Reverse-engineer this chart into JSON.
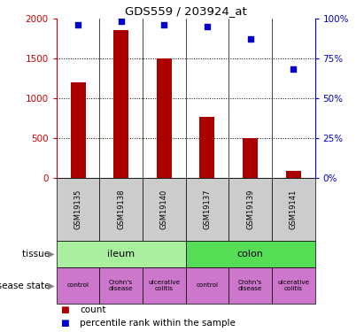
{
  "title": "GDS559 / 203924_at",
  "samples": [
    "GSM19135",
    "GSM19138",
    "GSM19140",
    "GSM19137",
    "GSM19139",
    "GSM19141"
  ],
  "bar_values": [
    1200,
    1850,
    1500,
    760,
    500,
    80
  ],
  "percentile_values": [
    96,
    98,
    96,
    95,
    87,
    68
  ],
  "bar_color": "#aa0000",
  "dot_color": "#0000cc",
  "ylim_left": [
    0,
    2000
  ],
  "ylim_right": [
    0,
    100
  ],
  "yticks_left": [
    0,
    500,
    1000,
    1500,
    2000
  ],
  "yticks_right": [
    0,
    25,
    50,
    75,
    100
  ],
  "tissue_data": [
    {
      "label": "ileum",
      "span": 3,
      "color": "#aaeea0"
    },
    {
      "label": "colon",
      "span": 3,
      "color": "#55dd55"
    }
  ],
  "disease_data": [
    {
      "label": "control",
      "color": "#cc77cc"
    },
    {
      "label": "Crohn's\ndisease",
      "color": "#cc77cc"
    },
    {
      "label": "ulcerative\ncolitis",
      "color": "#cc77cc"
    },
    {
      "label": "control",
      "color": "#cc77cc"
    },
    {
      "label": "Crohn's\ndisease",
      "color": "#cc77cc"
    },
    {
      "label": "ulcerative\ncolitis",
      "color": "#cc77cc"
    }
  ],
  "sample_bg_color": "#cccccc",
  "left_axis_color": "#cc0000",
  "right_axis_color": "#0000cc",
  "legend_count_color": "#aa0000",
  "legend_pct_color": "#0000cc",
  "tissue_row_label": "tissue",
  "disease_row_label": "disease state"
}
